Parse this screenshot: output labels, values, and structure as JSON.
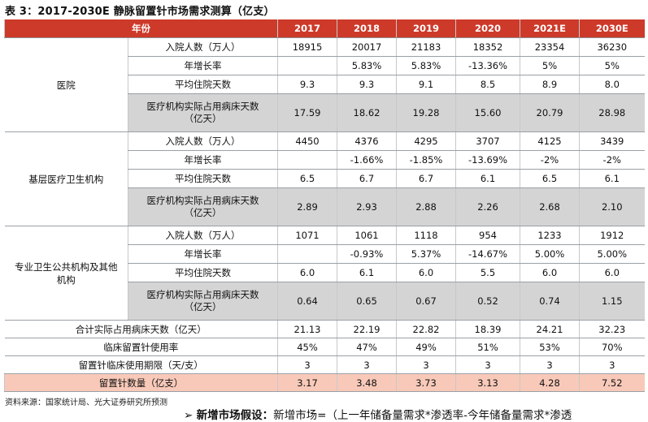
{
  "title": "表 3：2017-2030E 静脉留置针市场需求测算（亿支）",
  "header": {
    "label": "年份",
    "years": [
      "2017",
      "2018",
      "2019",
      "2020",
      "2021E",
      "2030E"
    ]
  },
  "groups": [
    {
      "name": "医院",
      "rows": [
        {
          "label": "入院人数（万人）",
          "values": [
            "18915",
            "20017",
            "21183",
            "18352",
            "23354",
            "36230"
          ]
        },
        {
          "label": "年增长率",
          "values": [
            "",
            "5.83%",
            "5.83%",
            "-13.36%",
            "5%",
            "5%"
          ]
        },
        {
          "label": "平均住院天数",
          "values": [
            "9.3",
            "9.3",
            "9.1",
            "8.5",
            "8.9",
            "8.0"
          ]
        },
        {
          "label": "医疗机构实际占用病床天数（亿天）",
          "label_lines": [
            "医疗机构实际占用病床天数",
            "（亿天）"
          ],
          "values": [
            "17.59",
            "18.62",
            "19.28",
            "15.60",
            "20.79",
            "28.98"
          ]
        }
      ]
    },
    {
      "name": "基层医疗卫生机构",
      "rows": [
        {
          "label": "入院人数（万人）",
          "values": [
            "4450",
            "4376",
            "4295",
            "3707",
            "4125",
            "3439"
          ]
        },
        {
          "label": "年增长率",
          "values": [
            "",
            "-1.66%",
            "-1.85%",
            "-13.69%",
            "-2%",
            "-2%"
          ]
        },
        {
          "label": "平均住院天数",
          "values": [
            "6.5",
            "6.7",
            "6.7",
            "6.1",
            "6.5",
            "6.1"
          ]
        },
        {
          "label": "医疗机构实际占用病床天数（亿天）",
          "label_lines": [
            "医疗机构实际占用病床天数",
            "（亿天）"
          ],
          "values": [
            "2.89",
            "2.93",
            "2.88",
            "2.26",
            "2.68",
            "2.10"
          ]
        }
      ]
    },
    {
      "name": "专业卫生公共机构及其他机构",
      "name_lines": [
        "专业卫生公共机构及其他",
        "机构"
      ],
      "rows": [
        {
          "label": "入院人数（万人）",
          "values": [
            "1071",
            "1061",
            "1118",
            "954",
            "1233",
            "1912"
          ]
        },
        {
          "label": "年增长率",
          "values": [
            "",
            "-0.93%",
            "5.37%",
            "-14.67%",
            "5.00%",
            "5.00%"
          ]
        },
        {
          "label": "平均住院天数",
          "values": [
            "6.0",
            "6.1",
            "6.0",
            "5.5",
            "6.0",
            "6.0"
          ]
        },
        {
          "label": "医疗机构实际占用病床天数（亿天）",
          "label_lines": [
            "医疗机构实际占用病床天数",
            "（亿天）"
          ],
          "values": [
            "0.64",
            "0.65",
            "0.67",
            "0.52",
            "0.74",
            "1.15"
          ]
        }
      ]
    }
  ],
  "summary": [
    {
      "label": "合计实际占用病床天数（亿天）",
      "values": [
        "21.13",
        "22.19",
        "22.82",
        "18.39",
        "24.21",
        "32.23"
      ]
    },
    {
      "label": "临床留置针使用率",
      "values": [
        "45%",
        "47%",
        "49%",
        "51%",
        "53%",
        "70%"
      ]
    },
    {
      "label": "留置针临床使用期限（天/支）",
      "values": [
        "3",
        "3",
        "3",
        "3",
        "3",
        "3"
      ]
    },
    {
      "label": "留置针数量（亿支）",
      "values": [
        "3.17",
        "3.48",
        "3.73",
        "3.13",
        "4.28",
        "7.52"
      ],
      "highlight": true
    }
  ],
  "source": "资料来源：国家统计局、光大证券研究所预测",
  "note": {
    "bullet": "➢",
    "heading": "新增市场假设：",
    "text": "新增市场=（上一年储备量需求*渗透率-今年储备量需求*渗透"
  },
  "colors": {
    "header_bg": "#cd3a2a",
    "gray_row": "#d4d4d4",
    "highlight_row": "#f8c9b9"
  }
}
